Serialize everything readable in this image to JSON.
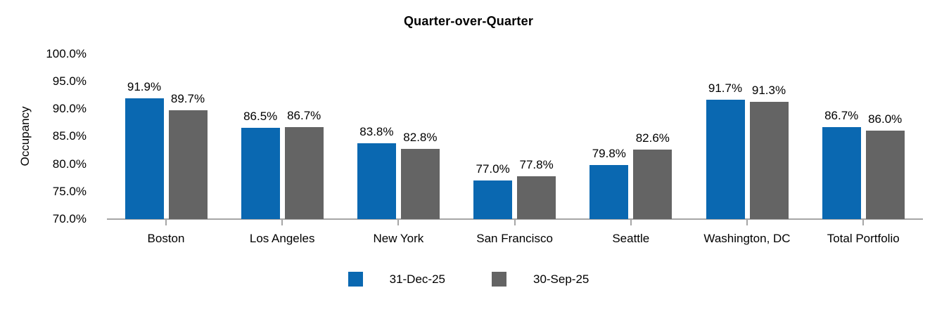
{
  "chart_data": {
    "type": "bar",
    "title": "Quarter-over-Quarter",
    "ylabel": "Occupancy",
    "categories": [
      "Boston",
      "Los Angeles",
      "New York",
      "San Francisco",
      "Seattle",
      "Washington, DC",
      "Total Portfolio"
    ],
    "series": [
      {
        "name": "31-Dec-25",
        "color": "#0a68b1",
        "values": [
          91.9,
          86.5,
          83.8,
          77.0,
          79.8,
          91.7,
          86.7
        ]
      },
      {
        "name": "30-Sep-25",
        "color": "#646464",
        "values": [
          89.7,
          86.7,
          82.8,
          77.8,
          82.6,
          91.3,
          86.0
        ]
      }
    ],
    "y_axis": {
      "min": 70,
      "max": 100,
      "tick_step": 5,
      "tick_labels": [
        "70.0%",
        "75.0%",
        "80.0%",
        "85.0%",
        "90.0%",
        "95.0%",
        "100.0%"
      ]
    },
    "data_label_format": "0.0%",
    "grid": false,
    "legend_position": "bottom",
    "axis_color": "#a6a6a6",
    "text_color": "#000000",
    "background": "#ffffff"
  }
}
